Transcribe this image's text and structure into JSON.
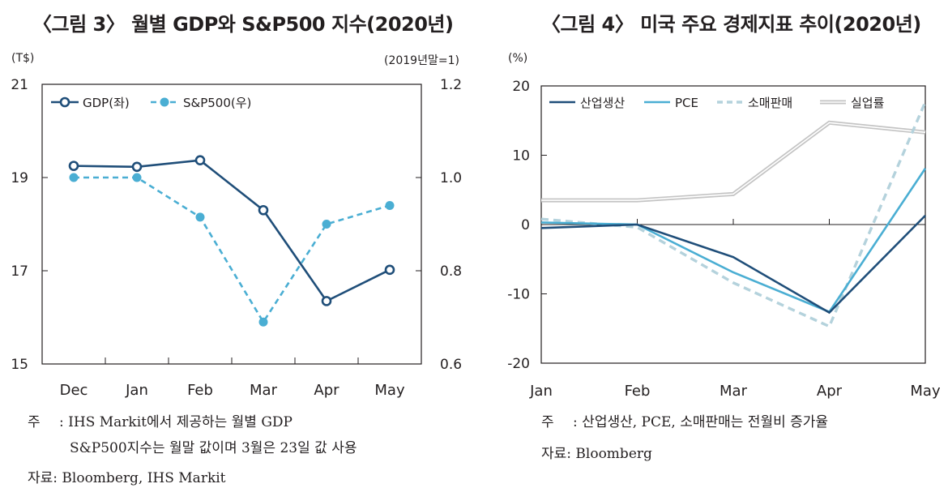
{
  "titles": {
    "left": "〈그림 3〉 월별 GDP와 S&P500 지수(2020년)",
    "right": "〈그림 4〉 미국 주요 경제지표 추이(2020년)"
  },
  "units": {
    "left_y": "(T$)",
    "left_y2": "(2019년말=1)",
    "right_y": "(%)"
  },
  "notes": {
    "left_note_label": "주",
    "left_note_line1": ": IHS Markit에서 제공하는 월별 GDP",
    "left_note_line2": "S&P500지수는 월말 값이며 3월은 23일 값 사용",
    "left_source": "자료: Bloomberg, IHS Markit",
    "right_note_label": "주",
    "right_note_line1": ": 산업생산, PCE, 소매판매는 전월비 증가율",
    "right_source": "자료: Bloomberg"
  },
  "colors": {
    "navy": "#1f4e79",
    "sky": "#4aaed3",
    "pale": "#b4d2dc",
    "gray": "#c4c4c4"
  },
  "chart_data": [
    {
      "type": "line",
      "title": "〈그림 3〉 월별 GDP와 S&P500 지수(2020년)",
      "categories": [
        "Dec",
        "Jan",
        "Feb",
        "Mar",
        "Apr",
        "May"
      ],
      "ylim": [
        15,
        21
      ],
      "yticks": [
        15,
        17,
        19,
        21
      ],
      "y2lim": [
        0.6,
        1.2
      ],
      "y2ticks": [
        "0.6",
        "0.8",
        "1.0",
        "1.2"
      ],
      "grid": false,
      "legend_position": "top-left",
      "series": [
        {
          "name": "GDP(좌)",
          "axis": "left",
          "style": "solid",
          "color": "#1f4e79",
          "values": [
            19.25,
            19.23,
            19.37,
            18.3,
            16.35,
            17.02
          ]
        },
        {
          "name": "S&P500(우)",
          "axis": "right",
          "style": "dashed",
          "color": "#4aaed3",
          "values": [
            1.0,
            1.0,
            0.915,
            0.69,
            0.9,
            0.94
          ]
        }
      ]
    },
    {
      "type": "line",
      "title": "〈그림 4〉 미국 주요 경제지표 추이(2020년)",
      "categories": [
        "Jan",
        "Feb",
        "Mar",
        "Apr",
        "May"
      ],
      "ylim": [
        -20,
        20
      ],
      "yticks": [
        -20,
        -10,
        0,
        10,
        20
      ],
      "grid": false,
      "legend_position": "top",
      "series": [
        {
          "name": "산업생산",
          "style": "solid",
          "color": "#1f4e79",
          "values": [
            -0.5,
            0.0,
            -4.7,
            -12.7,
            1.3
          ]
        },
        {
          "name": "PCE",
          "style": "solid",
          "color": "#4aaed3",
          "values": [
            0.3,
            0.0,
            -6.9,
            -12.6,
            8.1
          ]
        },
        {
          "name": "소매판매",
          "style": "dashed",
          "color": "#b4d2dc",
          "values": [
            0.8,
            -0.4,
            -8.4,
            -14.7,
            17.7
          ]
        },
        {
          "name": "실업률",
          "style": "double",
          "color": "#c4c4c4",
          "values": [
            3.5,
            3.5,
            4.4,
            14.7,
            13.3
          ]
        }
      ]
    }
  ]
}
